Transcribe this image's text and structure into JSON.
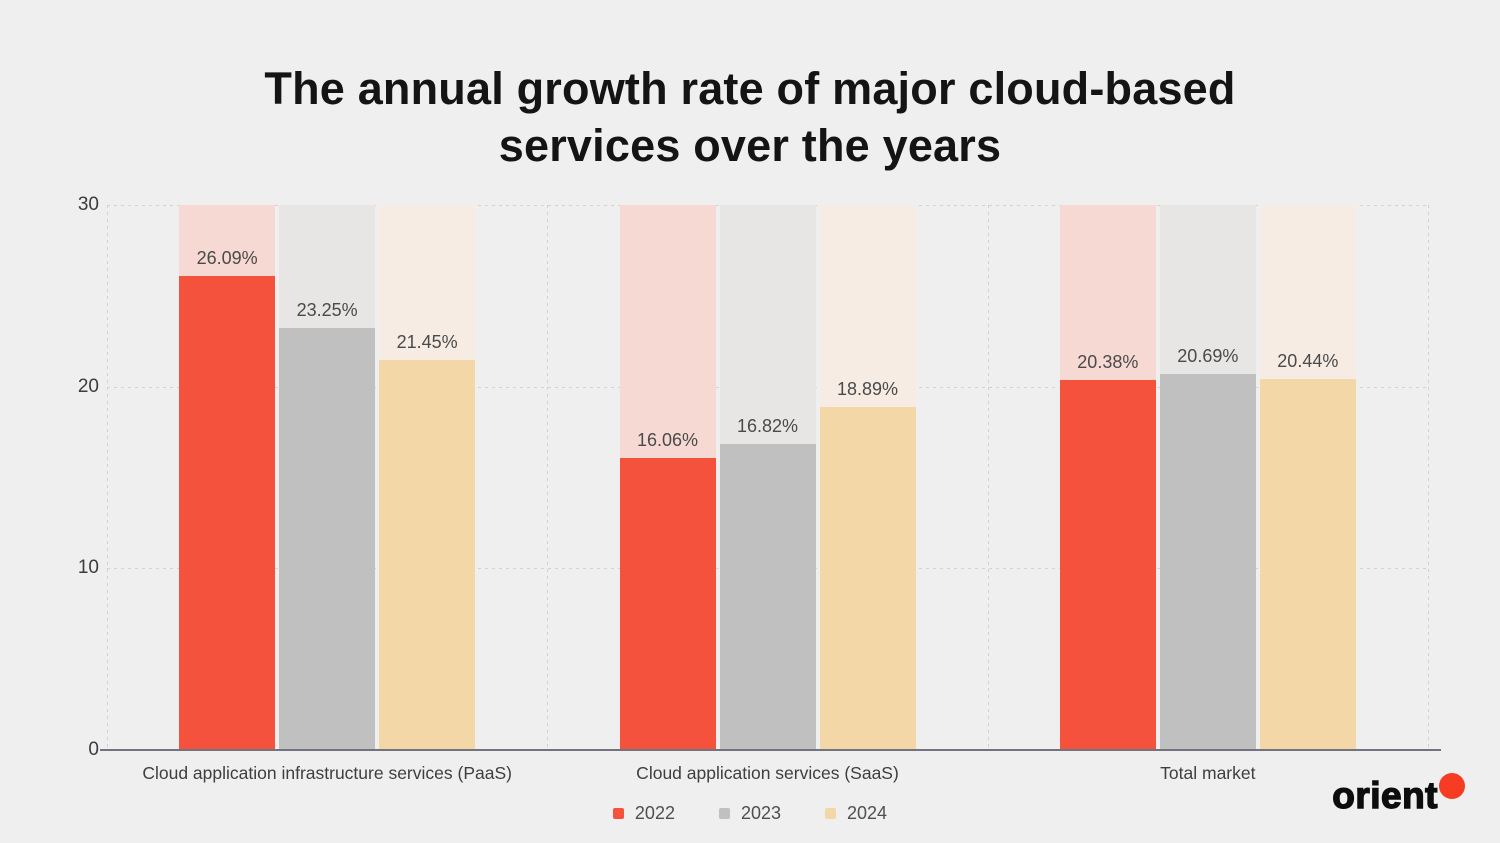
{
  "page": {
    "background": "#f0efef"
  },
  "title": {
    "line1": "The annual growth rate of major cloud-based",
    "line2": "services over the years"
  },
  "footer": {
    "brand": "orient",
    "brand_dot_color": "#f63c22"
  },
  "chart_data": {
    "type": "bar",
    "title": "The annual growth rate of major cloud-based services over the years",
    "categories": [
      "Cloud application infrastructure services (PaaS)",
      "Cloud application services (SaaS)",
      "Total market"
    ],
    "series": [
      {
        "name": "2022",
        "color": "#f5523d",
        "track_color": "#f7d9d3",
        "values": [
          26.09,
          16.06,
          20.38
        ],
        "value_labels": [
          "26.09%",
          "16.06%",
          "20.38%"
        ]
      },
      {
        "name": "2023",
        "color": "#c1c0c0",
        "track_color": "#e7e6e5",
        "values": [
          23.25,
          16.82,
          20.69
        ],
        "value_labels": [
          "23.25%",
          "16.82%",
          "20.69%"
        ]
      },
      {
        "name": "2024",
        "color": "#f4d7a7",
        "track_color": "#f6ece3",
        "values": [
          21.45,
          18.89,
          20.44
        ],
        "value_labels": [
          "21.45%",
          "18.89%",
          "20.44%"
        ]
      }
    ],
    "unit": "%",
    "ylim": [
      0,
      30
    ],
    "yticks": [
      0,
      10,
      20,
      30
    ],
    "ytick_labels": [
      "0",
      "10",
      "20",
      "30"
    ],
    "grid": "dashed",
    "legend_position": "bottom"
  }
}
